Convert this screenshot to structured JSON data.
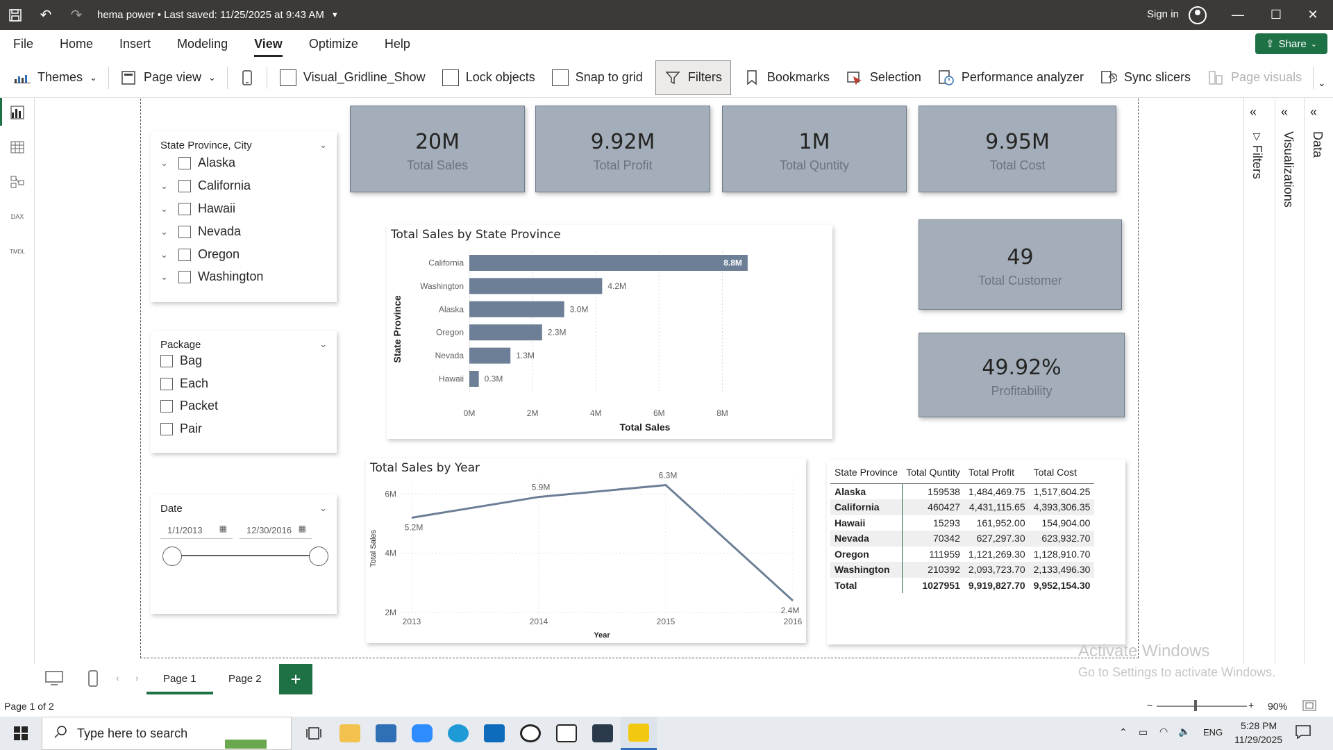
{
  "titlebar": {
    "doc_title": "hema power • Last saved: 11/25/2025 at 9:43 AM",
    "sign_in": "Sign in"
  },
  "menu": [
    "File",
    "Home",
    "Insert",
    "Modeling",
    "View",
    "Optimize",
    "Help"
  ],
  "menu_active": "View",
  "share_label": "Share",
  "ribbon": {
    "themes": "Themes",
    "page_view": "Page view",
    "gridline": "Visual_Gridline_Show",
    "lock_objects": "Lock objects",
    "snap_to_grid": "Snap to grid",
    "filters": "Filters",
    "bookmarks": "Bookmarks",
    "selection": "Selection",
    "performance": "Performance analyzer",
    "sync_slicers": "Sync slicers",
    "page_visuals": "Page visuals"
  },
  "slicers": {
    "location": {
      "title": "State Province, City",
      "items": [
        "Alaska",
        "California",
        "Hawaii",
        "Nevada",
        "Oregon",
        "Washington"
      ]
    },
    "package": {
      "title": "Package",
      "items": [
        "Bag",
        "Each",
        "Packet",
        "Pair"
      ]
    },
    "date": {
      "title": "Date",
      "start": "1/1/2013",
      "end": "12/30/2016"
    }
  },
  "kpis": {
    "total_sales": {
      "value": "20M",
      "label": "Total Sales"
    },
    "total_profit": {
      "value": "9.92M",
      "label": "Total Profit"
    },
    "total_quantity": {
      "value": "1M",
      "label": "Total Quntity"
    },
    "total_cost": {
      "value": "9.95M",
      "label": "Total Cost"
    },
    "total_customer": {
      "value": "49",
      "label": "Total Customer"
    },
    "profitability": {
      "value": "49.92%",
      "label": "Profitability"
    }
  },
  "chart_data": [
    {
      "type": "bar",
      "orientation": "horizontal",
      "title": "Total Sales by State Province",
      "xlabel": "Total Sales",
      "ylabel": "State Province",
      "categories": [
        "California",
        "Washington",
        "Alaska",
        "Oregon",
        "Nevada",
        "Hawaii"
      ],
      "values": [
        8.8,
        4.2,
        3.0,
        2.3,
        1.3,
        0.3
      ],
      "data_labels": [
        "8.8M",
        "4.2M",
        "3.0M",
        "2.3M",
        "1.3M",
        "0.3M"
      ],
      "ticks": [
        "0M",
        "2M",
        "4M",
        "6M",
        "8M"
      ],
      "xlim": [
        0,
        9
      ],
      "color": "#6c7f96"
    },
    {
      "type": "line",
      "title": "Total Sales by Year",
      "xlabel": "Year",
      "ylabel": "Total Sales",
      "x": [
        "2013",
        "2014",
        "2015",
        "2016"
      ],
      "values": [
        5.2,
        5.9,
        6.3,
        2.4
      ],
      "data_labels": [
        "5.2M",
        "5.9M",
        "6.3M",
        "2.4M"
      ],
      "yticks": [
        "2M",
        "4M",
        "6M"
      ],
      "ylim": [
        2,
        6.5
      ],
      "color": "#6c7f96"
    }
  ],
  "table": {
    "headers": [
      "State Province",
      "Total Quntity",
      "Total Profit",
      "Total Cost"
    ],
    "rows": [
      [
        "Alaska",
        "159538",
        "1,484,469.75",
        "1,517,604.25"
      ],
      [
        "California",
        "460427",
        "4,431,115.65",
        "4,393,306.35"
      ],
      [
        "Hawaii",
        "15293",
        "161,952.00",
        "154,904.00"
      ],
      [
        "Nevada",
        "70342",
        "627,297.30",
        "623,932.70"
      ],
      [
        "Oregon",
        "111959",
        "1,121,269.30",
        "1,128,910.70"
      ],
      [
        "Washington",
        "210392",
        "2,093,723.70",
        "2,133,496.30"
      ]
    ],
    "total": [
      "Total",
      "1027951",
      "9,919,827.70",
      "9,952,154.30"
    ]
  },
  "panes": {
    "filters": "Filters",
    "visualizations": "Visualizations",
    "data": "Data"
  },
  "tabs": [
    "Page 1",
    "Page 2"
  ],
  "status": {
    "page": "Page 1 of 2",
    "zoom": "90%"
  },
  "watermark": {
    "line1": "Activate Windows",
    "line2": "Go to Settings to activate Windows."
  },
  "taskbar": {
    "search_placeholder": "Type here to search",
    "time": "5:28 PM",
    "date": "11/29/2025",
    "lang": "ENG"
  }
}
